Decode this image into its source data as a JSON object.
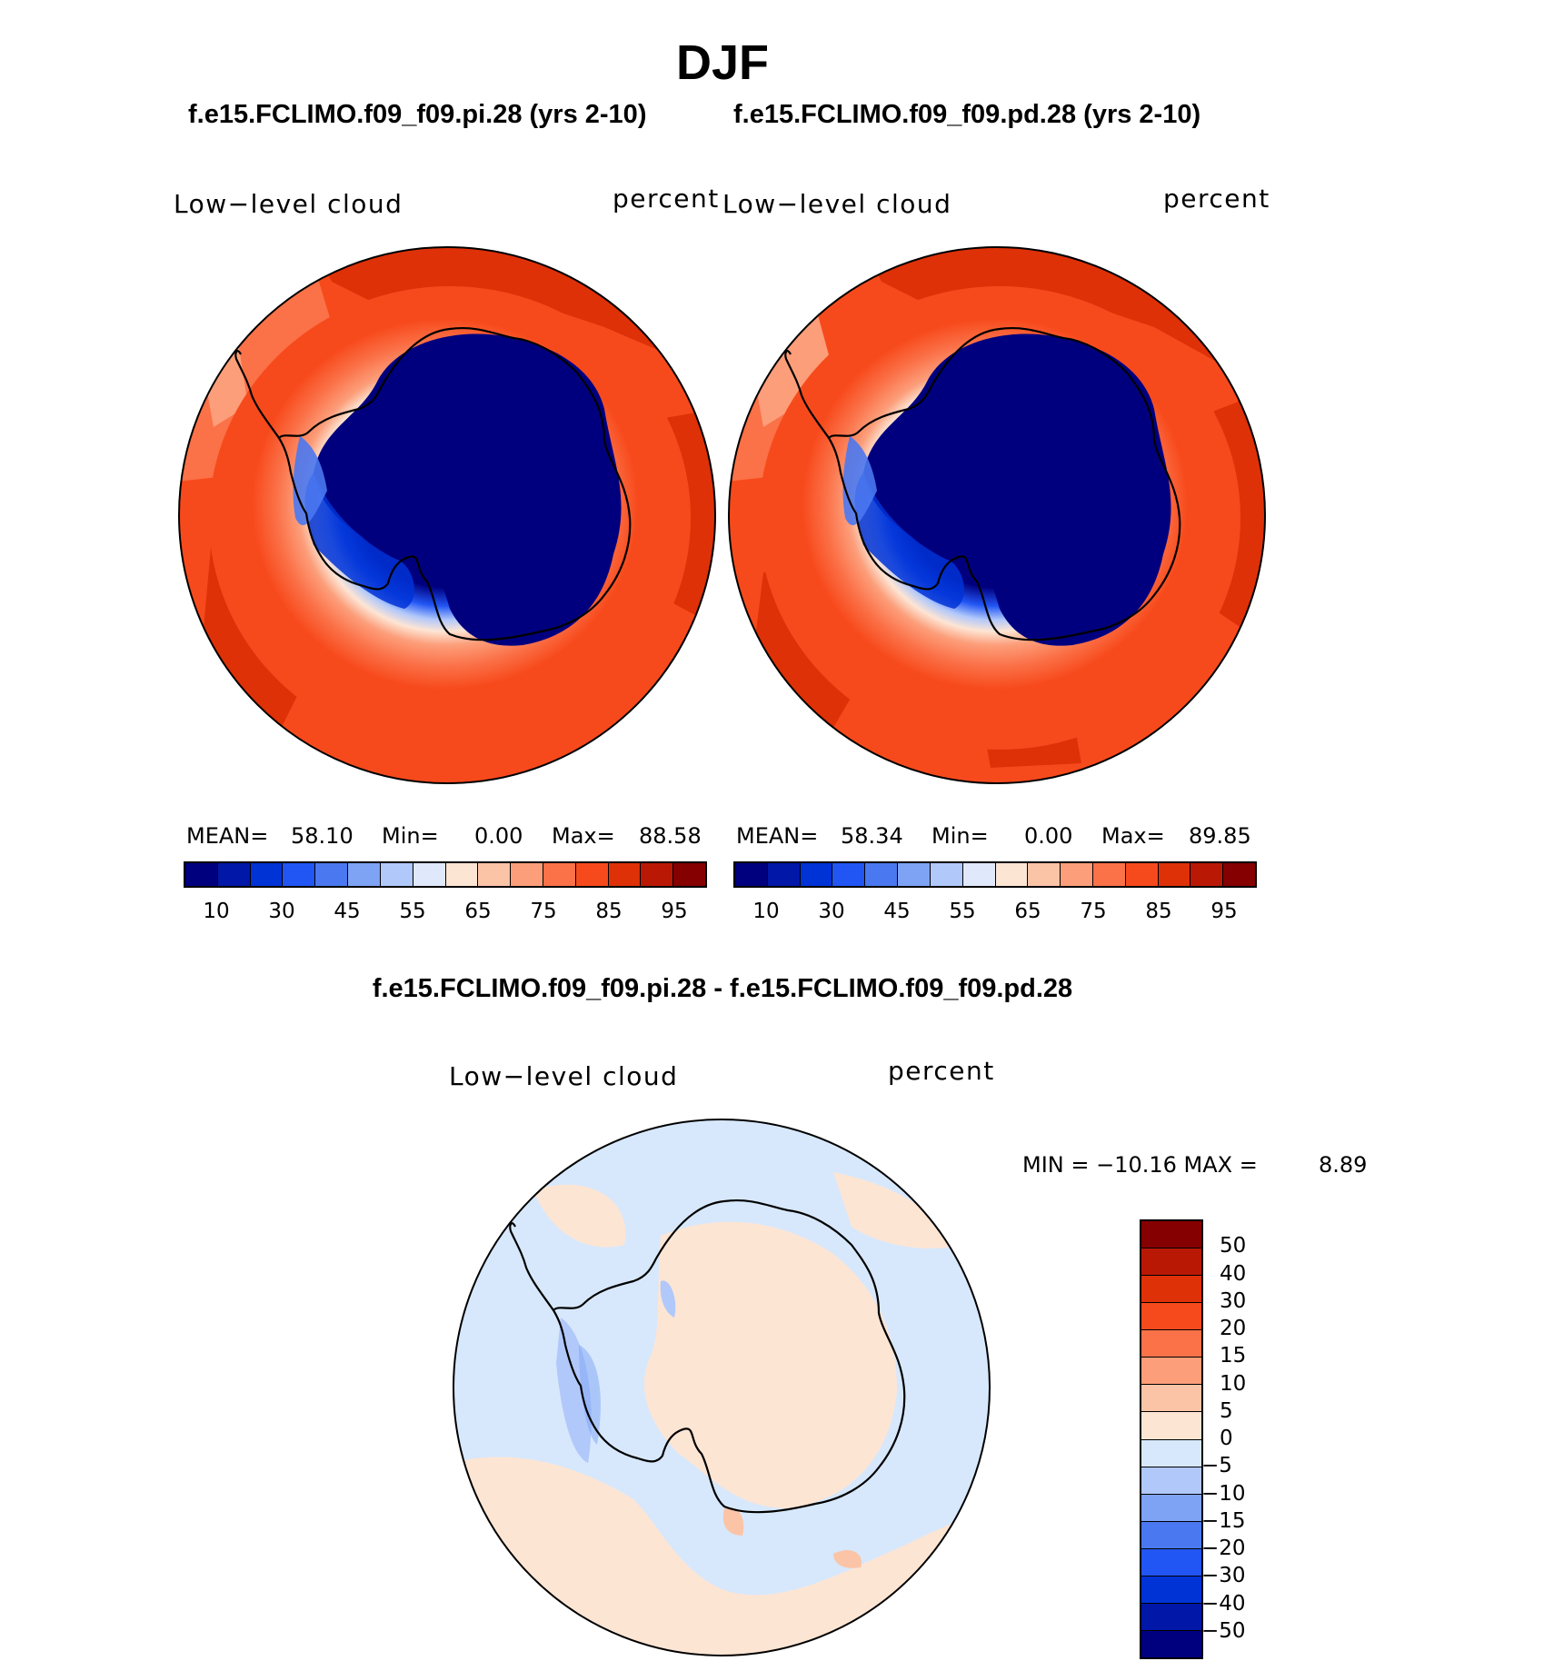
{
  "figure": {
    "season": "DJF"
  },
  "panels": [
    {
      "run_title": "f.e15.FCLIMO.f09_f09.pi.28 (yrs 2-10)",
      "variable": "Low−level cloud",
      "units": "percent",
      "mean_label": "MEAN=",
      "mean": "58.10",
      "min_label": "Min=",
      "min": "0.00",
      "max_label": "Max=",
      "max": "88.58"
    },
    {
      "run_title": "f.e15.FCLIMO.f09_f09.pd.28 (yrs 2-10)",
      "variable": "Low−level cloud",
      "units": "percent",
      "mean_label": "MEAN=",
      "mean": "58.34",
      "min_label": "Min=",
      "min": "0.00",
      "max_label": "Max=",
      "max": "89.85"
    }
  ],
  "diff": {
    "title": "f.e15.FCLIMO.f09_f09.pi.28 - f.e15.FCLIMO.f09_f09.pd.28",
    "variable": "Low−level cloud",
    "units": "percent",
    "minmax_text": "MIN = −10.16  MAX =",
    "max": "8.89"
  },
  "colorbars": {
    "absolute": {
      "colors": [
        "#00007f",
        "#0017a8",
        "#0033d6",
        "#2155f4",
        "#4a78f0",
        "#7ea3f5",
        "#b1c8fa",
        "#dfe9fb",
        "#fde5d4",
        "#fcc4a7",
        "#fc9e7a",
        "#fb7148",
        "#f74a1c",
        "#de3108",
        "#b91805",
        "#850000"
      ],
      "tick_labels": [
        "10",
        "30",
        "45",
        "55",
        "65",
        "75",
        "85",
        "95"
      ]
    },
    "difference": {
      "colors": [
        "#850000",
        "#b91805",
        "#de3108",
        "#f74a1c",
        "#fb7148",
        "#fc9e7a",
        "#fcc4a7",
        "#fde5d4",
        "#d7e8fc",
        "#b1c8fa",
        "#7ea3f5",
        "#4a78f0",
        "#2155f4",
        "#0033d6",
        "#0017a8",
        "#00007f"
      ],
      "tick_labels": [
        "50",
        "40",
        "30",
        "20",
        "15",
        "10",
        "5",
        "0",
        "−5",
        "−10",
        "−15",
        "−20",
        "−30",
        "−40",
        "−50"
      ]
    }
  }
}
